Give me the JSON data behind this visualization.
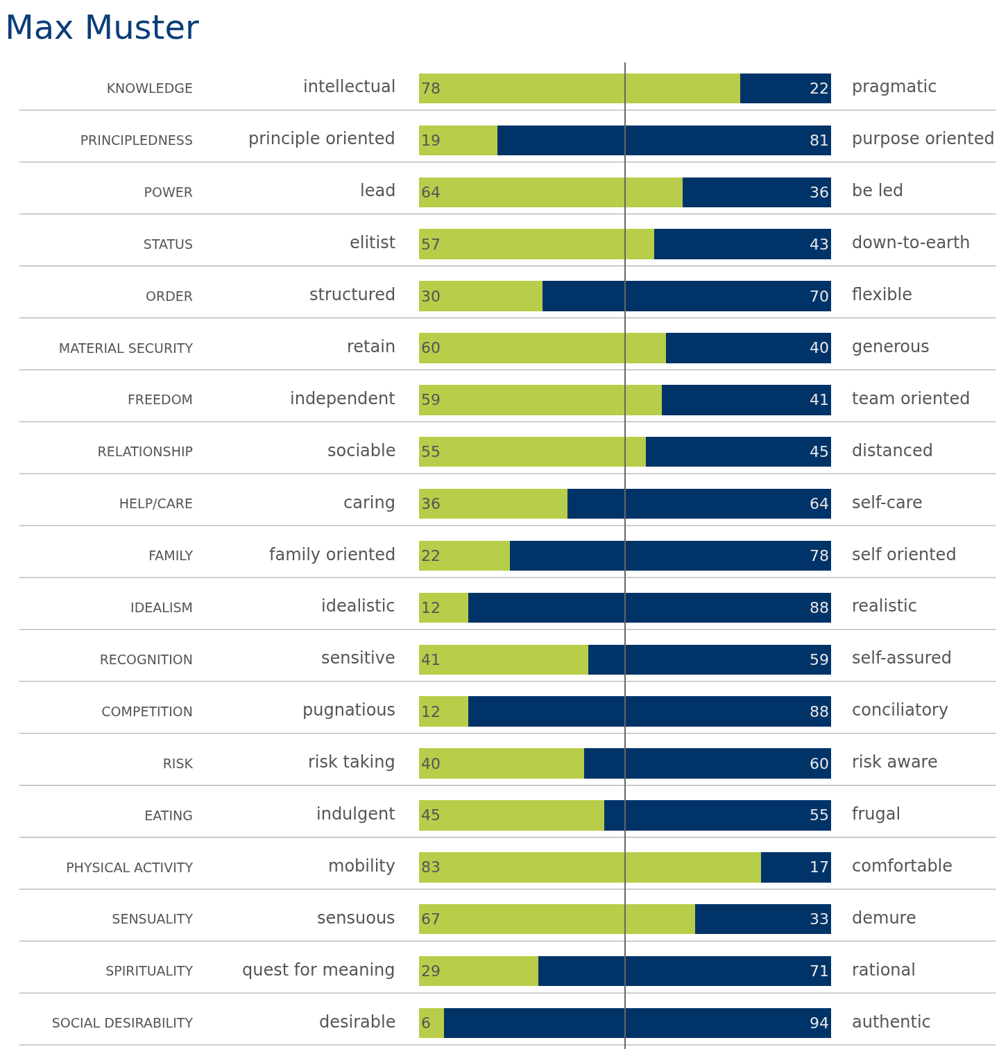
{
  "chart_data": {
    "type": "bar",
    "title": "Max Muster",
    "orientation": "horizontal",
    "stacked": true,
    "data_labels": true,
    "tick_labels": "y",
    "xlim": [
      0,
      100
    ],
    "categories": [
      "KNOWLEDGE",
      "PRINCIPLEDNESS",
      "POWER",
      "STATUS",
      "ORDER",
      "MATERIAL SECURITY",
      "FREEDOM",
      "RELATIONSHIP",
      "HELP/CARE",
      "FAMILY",
      "IDEALISM",
      "RECOGNITION",
      "COMPETITION",
      "RISK",
      "EATING",
      "PHYSICAL ACTIVITY",
      "SENSUALITY",
      "SPIRITUALITY",
      "SOCIAL DESIRABILITY"
    ],
    "series": [
      {
        "color": "#b8cd4a",
        "values": [
          78,
          19,
          64,
          57,
          30,
          60,
          59,
          55,
          36,
          22,
          12,
          41,
          12,
          40,
          45,
          83,
          67,
          29,
          6
        ]
      },
      {
        "color": "#003468",
        "values": [
          22,
          81,
          36,
          43,
          70,
          40,
          41,
          45,
          64,
          78,
          88,
          59,
          88,
          60,
          55,
          17,
          33,
          71,
          94
        ]
      }
    ],
    "ref_lines": [
      {
        "axis": "x",
        "value": 50,
        "color": "#666666"
      }
    ],
    "annotations": [
      "intellectual",
      "pragmatic",
      "principle oriented",
      "purpose oriented",
      "lead",
      "be led",
      "elitist",
      "down-to-earth",
      "structured",
      "flexible",
      "retain",
      "generous",
      "independent",
      "team oriented",
      "sociable",
      "distanced",
      "caring",
      "self-care",
      "family oriented",
      "self oriented",
      "idealistic",
      "realistic",
      "sensitive",
      "self-assured",
      "pugnatious",
      "conciliatory",
      "risk taking",
      "risk aware",
      "indulgent",
      "frugal",
      "mobility",
      "comfortable",
      "sensuous",
      "demure",
      "quest for meaning",
      "rational",
      "desirable",
      "authentic"
    ]
  }
}
